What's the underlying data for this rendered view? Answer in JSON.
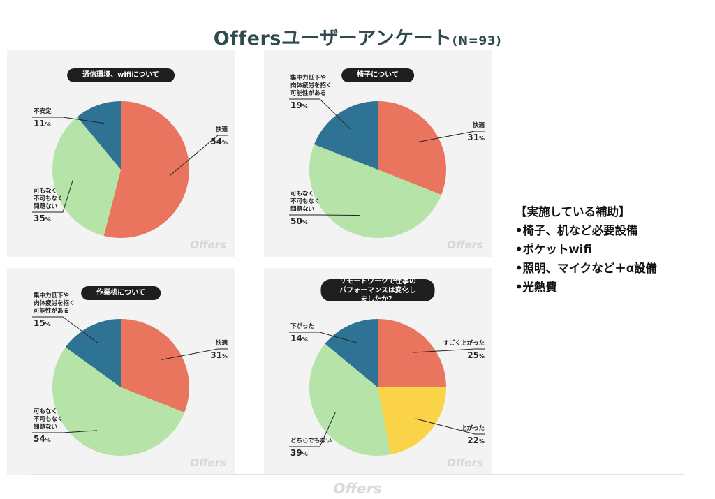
{
  "page": {
    "title": "Offersユーザーアンケート",
    "subtitle": "(N=93)",
    "watermark": "Offers"
  },
  "subsidy": {
    "heading": "【実施している補助】",
    "items": [
      "•椅子、机など必要設備",
      "•ポケットwifi",
      "•照明、マイクなど＋α設備",
      "•光熱費"
    ]
  },
  "colors": {
    "red": "#e9755f",
    "green": "#b5e3a8",
    "blue": "#2f7394",
    "yellow": "#fbd348"
  },
  "chart_data": [
    {
      "type": "pie",
      "title": "通信環境、wifiについて",
      "slices": [
        {
          "label": "快適",
          "value": 54,
          "color": "#e9755f"
        },
        {
          "label": "可もなく\n不可もなく\n問題ない",
          "value": 35,
          "color": "#b5e3a8"
        },
        {
          "label": "不安定",
          "value": 11,
          "color": "#2f7394"
        }
      ]
    },
    {
      "type": "pie",
      "title": "椅子について",
      "slices": [
        {
          "label": "快適",
          "value": 31,
          "color": "#e9755f"
        },
        {
          "label": "可もなく\n不可もなく\n問題ない",
          "value": 50,
          "color": "#b5e3a8"
        },
        {
          "label": "集中力低下や\n肉体疲労を招く\n可能性がある",
          "value": 19,
          "color": "#2f7394"
        }
      ]
    },
    {
      "type": "pie",
      "title": "作業机について",
      "slices": [
        {
          "label": "快適",
          "value": 31,
          "color": "#e9755f"
        },
        {
          "label": "可もなく\n不可もなく\n問題ない",
          "value": 54,
          "color": "#b5e3a8"
        },
        {
          "label": "集中力低下や\n肉体疲労を招く\n可能性がある",
          "value": 15,
          "color": "#2f7394"
        }
      ]
    },
    {
      "type": "pie",
      "title": "リモートワークで仕事の\nパフォーマンスは変化しましたか？",
      "slices": [
        {
          "label": "すごく上がった",
          "value": 25,
          "color": "#e9755f"
        },
        {
          "label": "上がった",
          "value": 22,
          "color": "#fbd348"
        },
        {
          "label": "どちらでもない",
          "value": 39,
          "color": "#b5e3a8"
        },
        {
          "label": "下がった",
          "value": 14,
          "color": "#2f7394"
        }
      ]
    }
  ]
}
